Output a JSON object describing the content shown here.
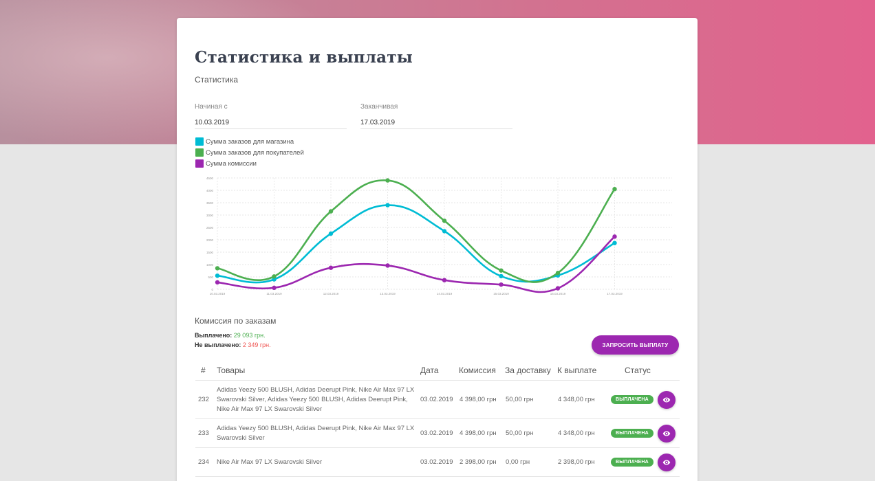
{
  "page": {
    "title": "Статистика и выплаты",
    "subtitle": "Статистика"
  },
  "filters": {
    "start": {
      "label": "Начиная с",
      "value": "10.03.2019"
    },
    "end": {
      "label": "Заканчивая",
      "value": "17.03.2019"
    }
  },
  "legend": [
    {
      "label": "Сумма заказов для магазина",
      "color": "#00bcd4"
    },
    {
      "label": "Сумма заказов для покупателей",
      "color": "#4caf50"
    },
    {
      "label": "Сумма комиссии",
      "color": "#9c27b0"
    }
  ],
  "chart_data": {
    "type": "line",
    "categories": [
      "10.03.2019",
      "11.03.2019",
      "12.03.2019",
      "13.03.2019",
      "14.03.2019",
      "15.03.2019",
      "16.03.2019",
      "17.03.2019"
    ],
    "yticks": [
      0,
      500,
      1000,
      1500,
      2000,
      2500,
      3000,
      3500,
      4000,
      4500
    ],
    "ylim": [
      0,
      4500
    ],
    "grid": true,
    "series": [
      {
        "name": "Сумма заказов для магазина",
        "color": "#00bcd4",
        "values": [
          550,
          400,
          2250,
          3400,
          2350,
          530,
          560,
          1870
        ]
      },
      {
        "name": "Сумма заказов для покупателей",
        "color": "#4caf50",
        "values": [
          850,
          520,
          3150,
          4400,
          2770,
          760,
          660,
          4050
        ]
      },
      {
        "name": "Сумма комиссии",
        "color": "#9c27b0",
        "values": [
          280,
          60,
          870,
          960,
          370,
          190,
          40,
          2130
        ]
      }
    ]
  },
  "commission": {
    "title": "Комиссия по заказам",
    "paid_label": "Выплачено:",
    "paid_value": "29 093 грн.",
    "unpaid_label": "Не выплачено:",
    "unpaid_value": "2 349 грн.",
    "payout_button": "ЗАПРОСИТЬ ВЫПЛАТУ"
  },
  "table": {
    "headers": {
      "num": "#",
      "goods": "Товары",
      "date": "Дата",
      "commission": "Комиссия",
      "delivery": "За доставку",
      "payout": "К выплате",
      "status": "Статус"
    },
    "rows": [
      {
        "num": "232",
        "goods": "Adidas Yeezy 500 BLUSH, Adidas Deerupt Pink, Nike Air Max 97 LX Swarovski Silver, Adidas Yeezy 500 BLUSH, Adidas Deerupt Pink, Nike Air Max 97 LX Swarovski Silver",
        "date": "03.02.2019",
        "commission": "4 398,00 грн",
        "delivery": "50,00 грн",
        "payout": "4 348,00 грн",
        "status": "ВЫПЛАЧЕНА"
      },
      {
        "num": "233",
        "goods": "Adidas Yeezy 500 BLUSH, Adidas Deerupt Pink, Nike Air Max 97 LX Swarovski Silver",
        "date": "03.02.2019",
        "commission": "4 398,00 грн",
        "delivery": "50,00 грн",
        "payout": "4 348,00 грн",
        "status": "ВЫПЛАЧЕНА"
      },
      {
        "num": "234",
        "goods": "Nike Air Max 97 LX Swarovski Silver",
        "date": "03.02.2019",
        "commission": "2 398,00 грн",
        "delivery": "0,00 грн",
        "payout": "2 398,00 грн",
        "status": "ВЫПЛАЧЕНА"
      }
    ]
  },
  "icons": {
    "view": "eye-icon"
  }
}
